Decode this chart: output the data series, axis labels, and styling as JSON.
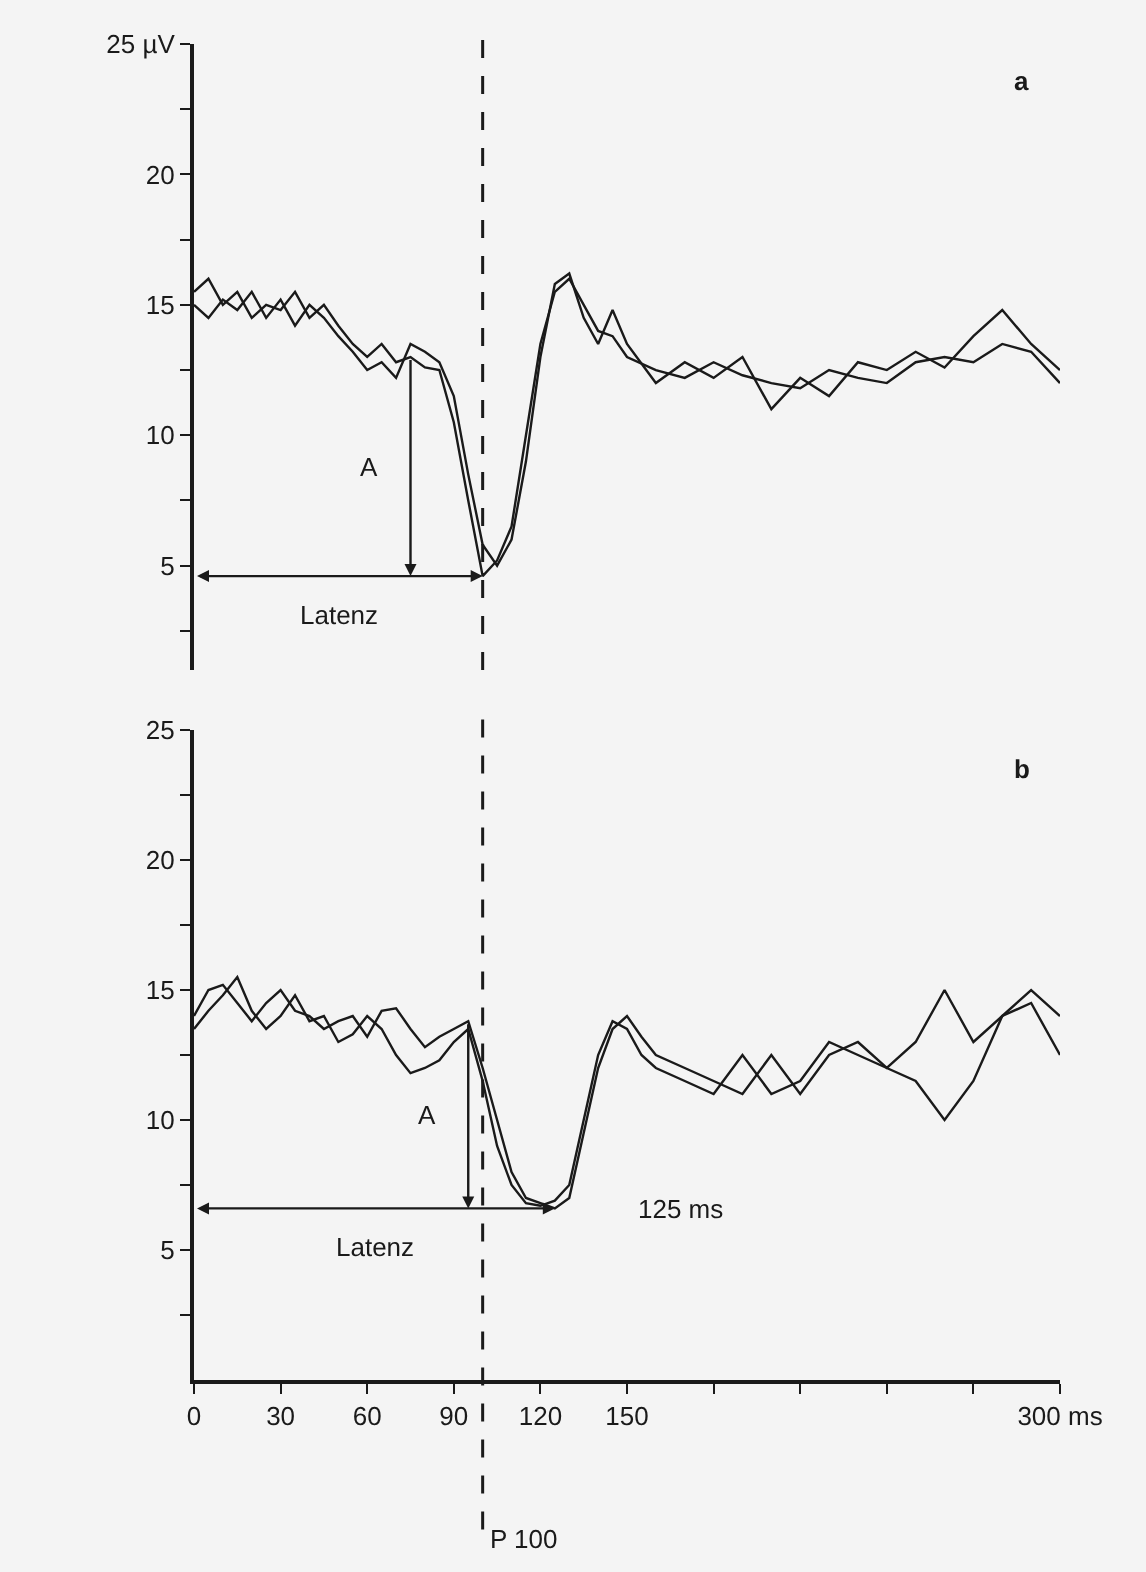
{
  "chart_data": [
    {
      "type": "line",
      "annotations": [
        "a",
        "A",
        "Latenz"
      ],
      "xlim": [
        0,
        300
      ],
      "ylim": [
        1,
        25
      ],
      "yticks": [
        {
          "value": 2.5,
          "label": null
        },
        5,
        {
          "value": 7.5,
          "label": null
        },
        10,
        {
          "value": 12.5,
          "label": null
        },
        15,
        {
          "value": 17.5,
          "label": null
        },
        20,
        {
          "value": 22.5,
          "label": null
        },
        {
          "value": 25,
          "label": "25 µV"
        }
      ],
      "tick_labels": "y",
      "grid": false,
      "marker": "none",
      "line_style": "solid",
      "ref_lines": [
        {
          "axis": "x",
          "value": 100,
          "line_style": "dashed"
        }
      ],
      "x": [
        0,
        5,
        10,
        15,
        20,
        25,
        30,
        35,
        40,
        45,
        50,
        55,
        60,
        65,
        70,
        75,
        80,
        85,
        90,
        95,
        100,
        105,
        110,
        115,
        120,
        125,
        130,
        135,
        140,
        145,
        150,
        160,
        170,
        180,
        190,
        200,
        210,
        220,
        230,
        240,
        250,
        260,
        270,
        280,
        290,
        300
      ],
      "series": [
        {
          "color": "#1a1a1a",
          "values": [
            15.5,
            16,
            15,
            15.5,
            14.5,
            15,
            14.8,
            15.5,
            14.5,
            15,
            14.2,
            13.5,
            13,
            13.5,
            12.8,
            13,
            12.6,
            12.5,
            10.5,
            7.5,
            4.6,
            5.2,
            6.5,
            10,
            13.5,
            15.5,
            16,
            15,
            14,
            13.8,
            13,
            12.5,
            12.2,
            12.8,
            12.3,
            12,
            11.8,
            12.5,
            12.2,
            12,
            12.8,
            13,
            12.8,
            13.5,
            13.2,
            12
          ]
        },
        {
          "color": "#1a1a1a",
          "values": [
            15,
            14.5,
            15.2,
            14.8,
            15.5,
            14.5,
            15.2,
            14.2,
            15,
            14.5,
            13.8,
            13.2,
            12.5,
            12.8,
            12.2,
            13.5,
            13.2,
            12.8,
            11.5,
            8.5,
            5.8,
            5,
            6,
            9,
            13,
            15.8,
            16.2,
            14.5,
            13.5,
            14.8,
            13.5,
            12,
            12.8,
            12.2,
            13,
            11,
            12.2,
            11.5,
            12.8,
            12.5,
            13.2,
            12.6,
            13.8,
            14.8,
            13.5,
            12.5
          ]
        }
      ]
    },
    {
      "type": "line",
      "annotations": [
        "b",
        "A",
        "Latenz",
        "125 ms"
      ],
      "xlim": [
        0,
        300
      ],
      "ylim": [
        0,
        25
      ],
      "xticks": [
        0,
        30,
        60,
        90,
        120,
        150,
        {
          "value": 180,
          "label": null
        },
        {
          "value": 210,
          "label": null
        },
        {
          "value": 240,
          "label": null
        },
        {
          "value": 270,
          "label": null
        },
        {
          "value": 300,
          "label": "300 ms"
        }
      ],
      "yticks": [
        {
          "value": 2.5,
          "label": null
        },
        5,
        {
          "value": 7.5,
          "label": null
        },
        10,
        {
          "value": 12.5,
          "label": null
        },
        15,
        {
          "value": 17.5,
          "label": null
        },
        20,
        {
          "value": 22.5,
          "label": null
        },
        25
      ],
      "grid": false,
      "marker": "none",
      "line_style": "solid",
      "ref_lines": [
        {
          "axis": "x",
          "value": 100,
          "label": "P 100",
          "line_style": "dashed"
        }
      ],
      "x": [
        0,
        5,
        10,
        15,
        20,
        25,
        30,
        35,
        40,
        45,
        50,
        55,
        60,
        65,
        70,
        75,
        80,
        85,
        90,
        95,
        100,
        105,
        110,
        115,
        120,
        125,
        130,
        135,
        140,
        145,
        150,
        155,
        160,
        170,
        180,
        190,
        200,
        210,
        220,
        230,
        240,
        250,
        260,
        270,
        280,
        290,
        300
      ],
      "series": [
        {
          "color": "#1a1a1a",
          "values": [
            14,
            15,
            15.2,
            14.5,
            13.8,
            14.5,
            15,
            14.2,
            14,
            13.5,
            13.8,
            14,
            13.2,
            14.2,
            14.3,
            13.5,
            12.8,
            13.2,
            13.5,
            13.8,
            12,
            10,
            8,
            7,
            6.8,
            6.6,
            7,
            9.5,
            12,
            13.5,
            14,
            13.2,
            12.5,
            12,
            11.5,
            11,
            12.5,
            11,
            12.5,
            13,
            12,
            13,
            15,
            13,
            14,
            15,
            14
          ]
        },
        {
          "color": "#1a1a1a",
          "values": [
            13.5,
            14.2,
            14.8,
            15.5,
            14.2,
            13.5,
            14,
            14.8,
            13.8,
            14,
            13,
            13.3,
            14,
            13.5,
            12.5,
            11.8,
            12,
            12.3,
            13,
            13.5,
            11.5,
            9,
            7.5,
            6.8,
            6.7,
            6.9,
            7.5,
            10,
            12.5,
            13.8,
            13.5,
            12.5,
            12,
            11.5,
            11,
            12.5,
            11,
            11.5,
            13,
            12.5,
            12,
            11.5,
            10,
            11.5,
            14,
            14.5,
            12.5
          ]
        }
      ]
    }
  ]
}
